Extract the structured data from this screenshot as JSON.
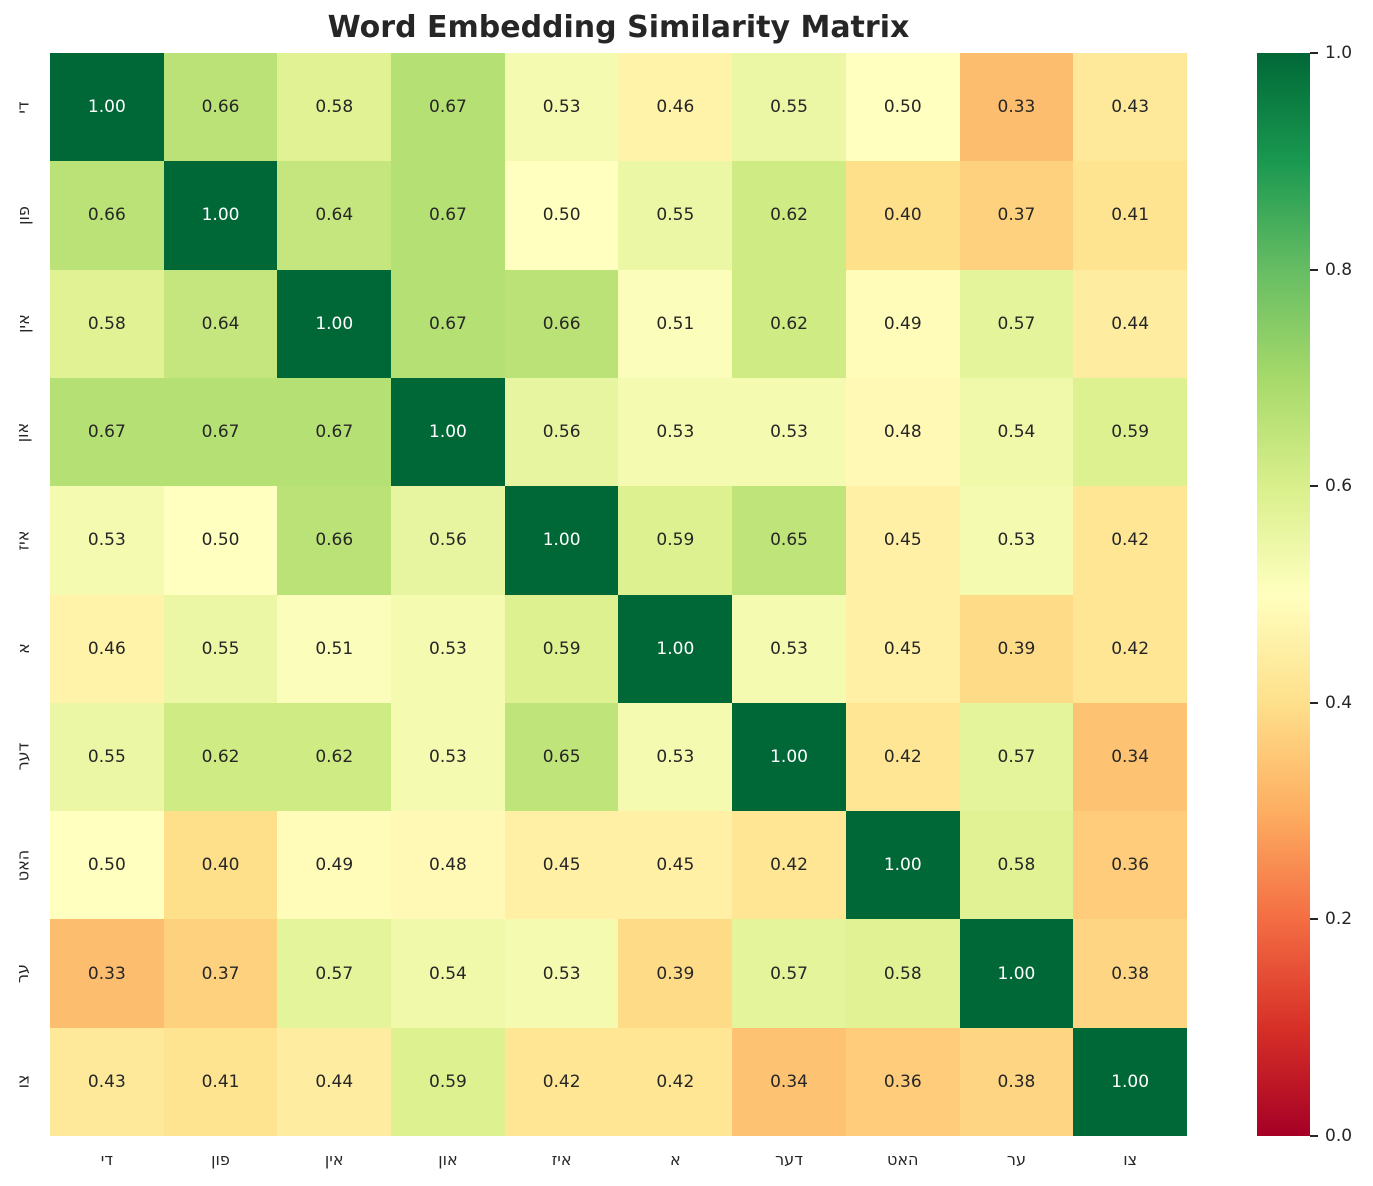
{
  "title": "Word Embedding Similarity Matrix",
  "colors": {
    "background": "#ffffff",
    "title_text": "#262626",
    "tick_label_text": "#262626",
    "annotation_dark_text": "#262626",
    "annotation_light_text": "#ffffff"
  },
  "chart_data": {
    "type": "heatmap",
    "title": "Word Embedding Similarity Matrix",
    "x_labels": [
      "די",
      "פון",
      "אין",
      "און",
      "איז",
      "א",
      "דער",
      "האט",
      "ער",
      "צו"
    ],
    "y_labels": [
      "די",
      "פון",
      "אין",
      "און",
      "איז",
      "א",
      "דער",
      "האט",
      "ער",
      "צו"
    ],
    "matrix": [
      [
        1.0,
        0.66,
        0.58,
        0.67,
        0.53,
        0.46,
        0.55,
        0.5,
        0.33,
        0.43
      ],
      [
        0.66,
        1.0,
        0.64,
        0.67,
        0.5,
        0.55,
        0.62,
        0.4,
        0.37,
        0.41
      ],
      [
        0.58,
        0.64,
        1.0,
        0.67,
        0.66,
        0.51,
        0.62,
        0.49,
        0.57,
        0.44
      ],
      [
        0.67,
        0.67,
        0.67,
        1.0,
        0.56,
        0.53,
        0.53,
        0.48,
        0.54,
        0.59
      ],
      [
        0.53,
        0.5,
        0.66,
        0.56,
        1.0,
        0.59,
        0.65,
        0.45,
        0.53,
        0.42
      ],
      [
        0.46,
        0.55,
        0.51,
        0.53,
        0.59,
        1.0,
        0.53,
        0.45,
        0.39,
        0.42
      ],
      [
        0.55,
        0.62,
        0.62,
        0.53,
        0.65,
        0.53,
        1.0,
        0.42,
        0.57,
        0.34
      ],
      [
        0.5,
        0.4,
        0.49,
        0.48,
        0.45,
        0.45,
        0.42,
        1.0,
        0.58,
        0.36
      ],
      [
        0.33,
        0.37,
        0.57,
        0.54,
        0.53,
        0.39,
        0.57,
        0.58,
        1.0,
        0.38
      ],
      [
        0.43,
        0.41,
        0.44,
        0.59,
        0.42,
        0.42,
        0.34,
        0.36,
        0.38,
        1.0
      ]
    ],
    "value_decimals": 2,
    "vmin": 0.0,
    "vmax": 1.0,
    "colormap_name": "RdYlGn",
    "colormap_stops": [
      [
        0.0,
        "#a50026"
      ],
      [
        0.1,
        "#d73027"
      ],
      [
        0.2,
        "#f46d43"
      ],
      [
        0.3,
        "#fdae61"
      ],
      [
        0.4,
        "#fee08b"
      ],
      [
        0.5,
        "#ffffbf"
      ],
      [
        0.6,
        "#d9ef8b"
      ],
      [
        0.7,
        "#a6d96a"
      ],
      [
        0.8,
        "#66bd63"
      ],
      [
        0.9,
        "#1a9850"
      ],
      [
        1.0,
        "#006837"
      ]
    ],
    "colorbar_ticks": [
      {
        "value": 1.0,
        "label": "1.0"
      },
      {
        "value": 0.8,
        "label": "0.8"
      },
      {
        "value": 0.6,
        "label": "0.6"
      },
      {
        "value": 0.4,
        "label": "0.4"
      },
      {
        "value": 0.2,
        "label": "0.2"
      },
      {
        "value": 0.0,
        "label": "0.0"
      }
    ],
    "legend_position": "right-colorbar",
    "grid": false
  }
}
